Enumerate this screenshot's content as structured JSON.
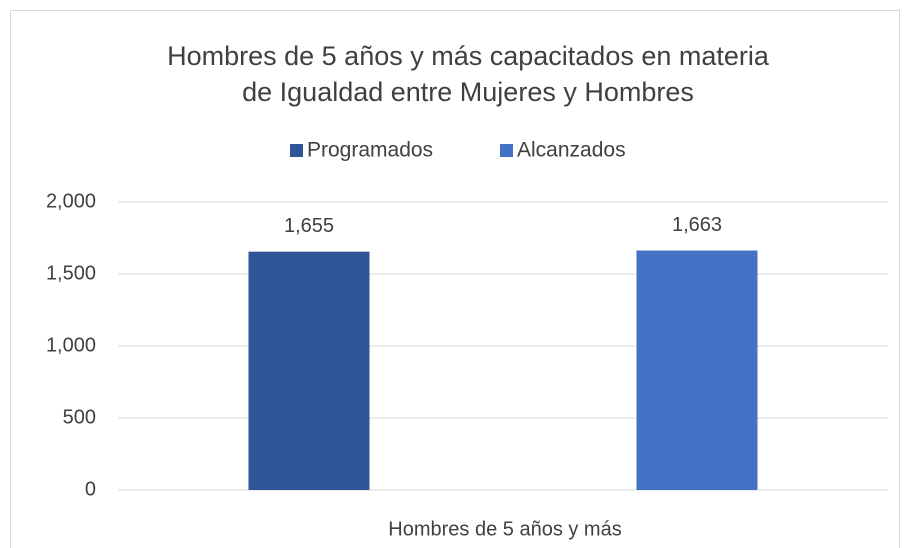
{
  "chart_data": {
    "type": "bar",
    "title": [
      "Hombres de 5 años y más capacitados en materia",
      "de Igualdad entre Mujeres y Hombres"
    ],
    "categories": [
      "Hombres de 5 años y más"
    ],
    "series": [
      {
        "name": "Programados",
        "color": "#2f5597",
        "values": [
          1655
        ],
        "value_labels": [
          "1,655"
        ]
      },
      {
        "name": "Alcanzados",
        "color": "#4472c4",
        "values": [
          1663
        ],
        "value_labels": [
          "1,663"
        ]
      }
    ],
    "ylim": [
      0,
      2000
    ],
    "yticks": [
      0,
      500,
      {
        "value": 1000,
        "label": "1,000"
      },
      {
        "value": 1500,
        "label": "1,500"
      },
      {
        "value": 2000,
        "label": "2,000"
      }
    ],
    "grid": true,
    "legend": "top"
  }
}
